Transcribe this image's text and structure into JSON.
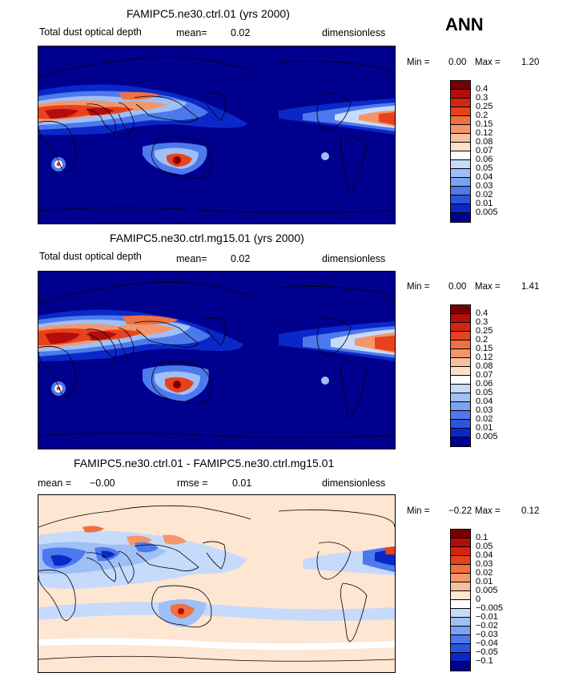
{
  "season": "ANN",
  "colors": {
    "ocean_base": "#00008f",
    "diff_base": "#fde6d2",
    "coast": "#000000"
  },
  "colorbar_main": {
    "labels": [
      "0.4",
      "0.3",
      "0.25",
      "0.2",
      "0.15",
      "0.12",
      "0.08",
      "0.07",
      "0.06",
      "0.05",
      "0.04",
      "0.03",
      "0.02",
      "0.01",
      "0.005"
    ],
    "colors": [
      "#7a0000",
      "#b30d0d",
      "#d6250f",
      "#e8411d",
      "#f0703f",
      "#f49669",
      "#f8bf9f",
      "#fde0cc",
      "#ffffff",
      "#c6dafb",
      "#9fbff7",
      "#7aa2f2",
      "#4d79ec",
      "#2a55de",
      "#0a28c8",
      "#00008f"
    ]
  },
  "colorbar_diff": {
    "labels": [
      "0.1",
      "0.05",
      "0.04",
      "0.03",
      "0.02",
      "0.01",
      "0.005",
      "0",
      "−0.005",
      "−0.01",
      "−0.02",
      "−0.03",
      "−0.04",
      "−0.05",
      "−0.1"
    ],
    "colors": [
      "#7a0000",
      "#b30d0d",
      "#d6250f",
      "#e8411d",
      "#f0703f",
      "#f49669",
      "#f8bf9f",
      "#fde6d2",
      "#ffffff",
      "#c6dafb",
      "#9fbff7",
      "#7aa2f2",
      "#4d79ec",
      "#2a55de",
      "#0a28c8",
      "#00008f"
    ]
  },
  "chart_data": [
    {
      "type": "heatmap",
      "title": "FAMIPC5.ne30.ctrl.01 (yrs 2000)",
      "left_label": "Total dust optical depth",
      "mean_label": "mean=",
      "mean_value": "0.02",
      "units": "dimensionless",
      "min_label": "Min =",
      "min_value": "0.00",
      "max_label": "Max =",
      "max_value": "1.20",
      "contour_levels": [
        0.005,
        0.01,
        0.02,
        0.03,
        0.04,
        0.05,
        0.06,
        0.07,
        0.08,
        0.12,
        0.15,
        0.2,
        0.25,
        0.3,
        0.4
      ]
    },
    {
      "type": "heatmap",
      "title": "FAMIPC5.ne30.ctrl.mg15.01 (yrs 2000)",
      "left_label": "Total dust optical depth",
      "mean_label": "mean=",
      "mean_value": "0.02",
      "units": "dimensionless",
      "min_label": "Min =",
      "min_value": "0.00",
      "max_label": "Max =",
      "max_value": "1.41",
      "contour_levels": [
        0.005,
        0.01,
        0.02,
        0.03,
        0.04,
        0.05,
        0.06,
        0.07,
        0.08,
        0.12,
        0.15,
        0.2,
        0.25,
        0.3,
        0.4
      ]
    },
    {
      "type": "heatmap",
      "title": "FAMIPC5.ne30.ctrl.01 - FAMIPC5.ne30.ctrl.mg15.01",
      "mean_label": "mean =",
      "mean_value": "−0.00",
      "rmse_label": "rmse =",
      "rmse_value": "0.01",
      "units": "dimensionless",
      "min_label": "Min =",
      "min_value": "−0.22",
      "max_label": "Max =",
      "max_value": "0.12",
      "contour_levels": [
        -0.1,
        -0.05,
        -0.04,
        -0.03,
        -0.02,
        -0.01,
        -0.005,
        0,
        0.005,
        0.01,
        0.02,
        0.03,
        0.04,
        0.05,
        0.1
      ]
    }
  ]
}
